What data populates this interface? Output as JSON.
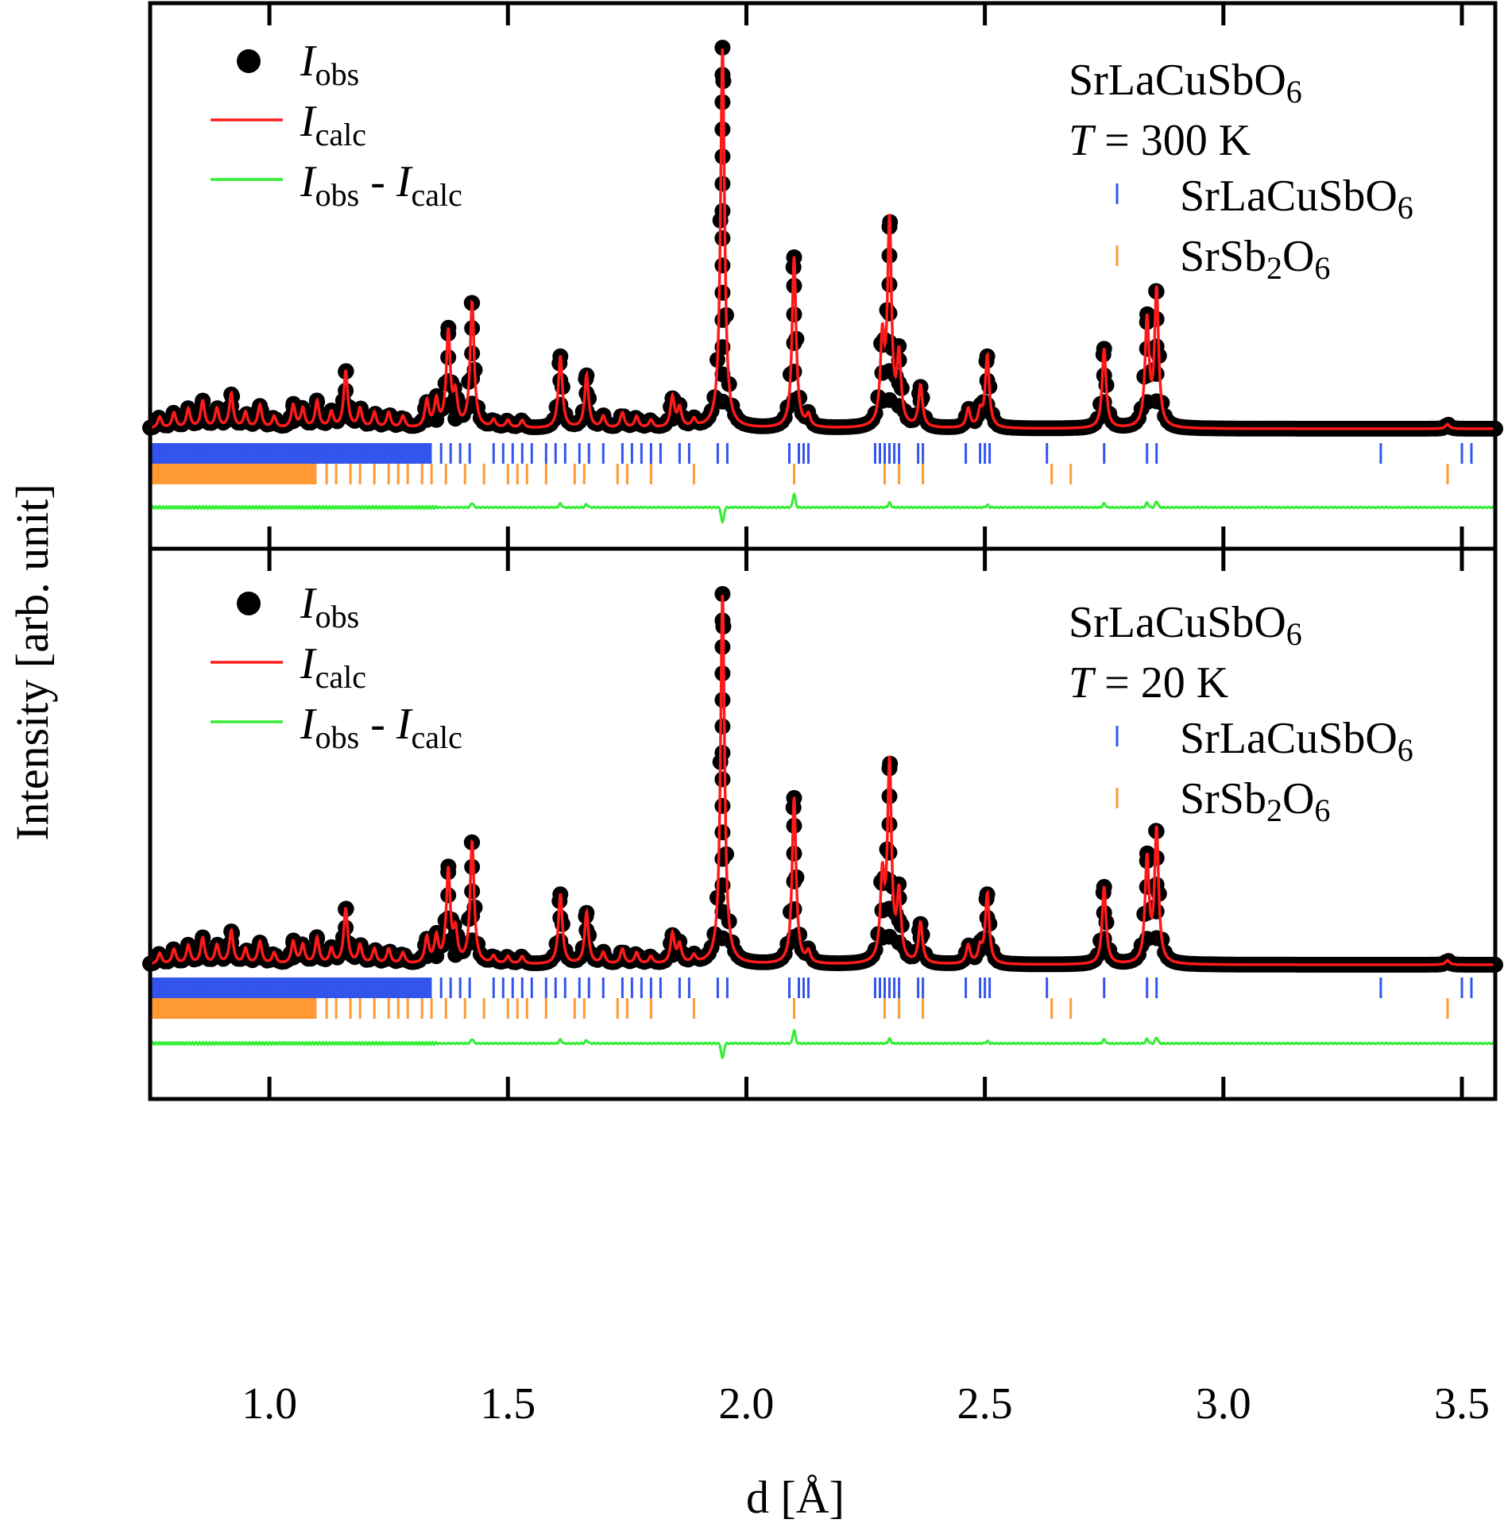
{
  "chart_data": {
    "type": "line",
    "xlabel": "d [Å]",
    "ylabel": "Intensity [arb. unit]",
    "xlim": [
      0.75,
      3.57
    ],
    "xticks": [
      "1.0",
      "1.5",
      "2.0",
      "2.5",
      "3.0",
      "3.5"
    ],
    "xtick_values": [
      1.0,
      1.5,
      2.0,
      2.5,
      3.0,
      3.5
    ],
    "grid": false,
    "legend_position": "top-left",
    "colors": {
      "obs": "#000000",
      "calc": "#ff1a1a",
      "diff": "#33ee33",
      "phase1": "#3355ee",
      "phase2": "#ff9933"
    },
    "legend": {
      "obs": {
        "main": "I",
        "sub": "obs"
      },
      "calc": {
        "main": "I",
        "sub": "calc"
      },
      "diff": {
        "main1": "I",
        "sub1": "obs",
        "sep": " - ",
        "main2": "I",
        "sub2": "calc"
      }
    },
    "peaks": [
      {
        "d": 0.77,
        "h": 0.03
      },
      {
        "d": 0.8,
        "h": 0.04
      },
      {
        "d": 0.83,
        "h": 0.05
      },
      {
        "d": 0.86,
        "h": 0.07
      },
      {
        "d": 0.89,
        "h": 0.05
      },
      {
        "d": 0.92,
        "h": 0.09
      },
      {
        "d": 0.95,
        "h": 0.04
      },
      {
        "d": 0.98,
        "h": 0.06
      },
      {
        "d": 1.01,
        "h": 0.03
      },
      {
        "d": 1.05,
        "h": 0.06
      },
      {
        "d": 1.07,
        "h": 0.05
      },
      {
        "d": 1.1,
        "h": 0.07
      },
      {
        "d": 1.13,
        "h": 0.04
      },
      {
        "d": 1.16,
        "h": 0.15
      },
      {
        "d": 1.19,
        "h": 0.05
      },
      {
        "d": 1.22,
        "h": 0.04
      },
      {
        "d": 1.25,
        "h": 0.04
      },
      {
        "d": 1.28,
        "h": 0.03
      },
      {
        "d": 1.33,
        "h": 0.07
      },
      {
        "d": 1.35,
        "h": 0.07
      },
      {
        "d": 1.375,
        "h": 0.25
      },
      {
        "d": 1.39,
        "h": 0.08
      },
      {
        "d": 1.425,
        "h": 0.33
      },
      {
        "d": 1.47,
        "h": 0.02
      },
      {
        "d": 1.5,
        "h": 0.02
      },
      {
        "d": 1.53,
        "h": 0.02
      },
      {
        "d": 1.61,
        "h": 0.19
      },
      {
        "d": 1.665,
        "h": 0.14
      },
      {
        "d": 1.7,
        "h": 0.03
      },
      {
        "d": 1.74,
        "h": 0.04
      },
      {
        "d": 1.77,
        "h": 0.03
      },
      {
        "d": 1.8,
        "h": 0.02
      },
      {
        "d": 1.845,
        "h": 0.08
      },
      {
        "d": 1.86,
        "h": 0.05
      },
      {
        "d": 1.89,
        "h": 0.02
      },
      {
        "d": 1.95,
        "h": 1.0
      },
      {
        "d": 2.1,
        "h": 0.45
      },
      {
        "d": 2.13,
        "h": 0.03
      },
      {
        "d": 2.285,
        "h": 0.22
      },
      {
        "d": 2.3,
        "h": 0.53
      },
      {
        "d": 2.32,
        "h": 0.18
      },
      {
        "d": 2.365,
        "h": 0.11
      },
      {
        "d": 2.465,
        "h": 0.05
      },
      {
        "d": 2.49,
        "h": 0.04
      },
      {
        "d": 2.505,
        "h": 0.19
      },
      {
        "d": 2.75,
        "h": 0.21
      },
      {
        "d": 2.84,
        "h": 0.28
      },
      {
        "d": 2.86,
        "h": 0.36
      },
      {
        "d": 3.47,
        "h": 0.012
      }
    ],
    "width": 0.005,
    "background": 0.012,
    "diff_features": [
      {
        "d": 1.425,
        "a": 0.012
      },
      {
        "d": 1.61,
        "a": 0.01
      },
      {
        "d": 1.665,
        "a": 0.008
      },
      {
        "d": 1.95,
        "a": -0.04
      },
      {
        "d": 2.1,
        "a": 0.035
      },
      {
        "d": 2.3,
        "a": 0.012
      },
      {
        "d": 2.505,
        "a": 0.006
      },
      {
        "d": 2.75,
        "a": 0.01
      },
      {
        "d": 2.84,
        "a": 0.012
      },
      {
        "d": 2.86,
        "a": 0.016
      }
    ],
    "reflections": {
      "phase1_dense_range": [
        0.75,
        1.34
      ],
      "phase1_extra": [
        1.36,
        1.38,
        1.4,
        1.42,
        1.47,
        1.49,
        1.51,
        1.53,
        1.55,
        1.58,
        1.6,
        1.62,
        1.65,
        1.67,
        1.7,
        1.74,
        1.76,
        1.78,
        1.8,
        1.82,
        1.86,
        1.88,
        1.94,
        1.96,
        2.09,
        2.11,
        2.12,
        2.13,
        2.27,
        2.28,
        2.29,
        2.3,
        2.31,
        2.32,
        2.36,
        2.37,
        2.46,
        2.49,
        2.5,
        2.51,
        2.63,
        2.75,
        2.84,
        2.86,
        3.33,
        3.5,
        3.52
      ],
      "phase2_dense_range": [
        0.75,
        1.1
      ],
      "phase2_extra": [
        1.12,
        1.14,
        1.17,
        1.19,
        1.22,
        1.25,
        1.27,
        1.29,
        1.32,
        1.34,
        1.37,
        1.41,
        1.45,
        1.5,
        1.52,
        1.54,
        1.58,
        1.64,
        1.66,
        1.73,
        1.75,
        1.8,
        1.89,
        2.1,
        2.29,
        2.32,
        2.37,
        2.64,
        2.68,
        3.47
      ]
    },
    "panels": [
      {
        "compound": {
          "main": "SrLaCuSbO",
          "sub": "6"
        },
        "temperature": {
          "var": "T",
          "rest": " = 300 K"
        },
        "phases": [
          {
            "main": "SrLaCuSbO",
            "sub": "6"
          },
          {
            "parts": [
              "SrSb",
              "2",
              "O",
              "6"
            ]
          }
        ],
        "peak_scale": 1.0
      },
      {
        "compound": {
          "main": "SrLaCuSbO",
          "sub": "6"
        },
        "temperature": {
          "var": "T",
          "rest": " = 20 K"
        },
        "phases": [
          {
            "main": "SrLaCuSbO",
            "sub": "6"
          },
          {
            "parts": [
              "SrSb",
              "2",
              "O",
              "6"
            ]
          }
        ],
        "peak_scale": 1.0
      }
    ]
  }
}
